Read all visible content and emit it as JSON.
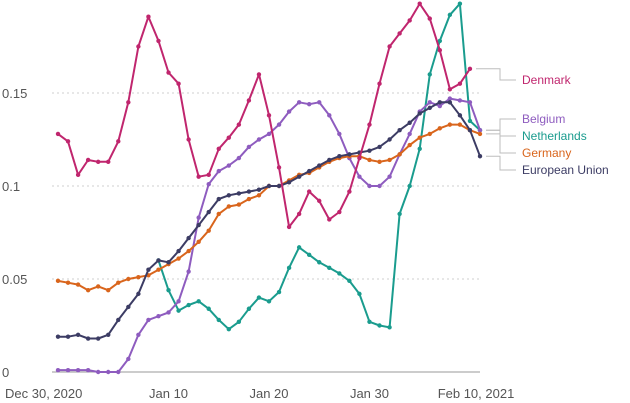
{
  "chart_data": {
    "type": "line",
    "title": "",
    "xlabel": "",
    "ylabel": "",
    "ylim": [
      0,
      0.2
    ],
    "yticks": [
      0,
      0.05,
      0.1,
      0.15
    ],
    "ytick_labels": [
      "0",
      "0.05",
      "0.1",
      "0.15"
    ],
    "xlim": [
      "2020-12-30",
      "2021-02-10"
    ],
    "xticks": [
      "2020-12-30",
      "2021-01-10",
      "2021-01-20",
      "2021-01-30",
      "2021-02-10"
    ],
    "xtick_labels": [
      "Dec 30, 2020",
      "Jan 10",
      "Jan 20",
      "Jan 30",
      "Feb 10, 2021"
    ],
    "grid": true,
    "legend": "right, labels at line ends",
    "x": [
      "2020-12-30",
      "2020-12-31",
      "2021-01-01",
      "2021-01-02",
      "2021-01-03",
      "2021-01-04",
      "2021-01-05",
      "2021-01-06",
      "2021-01-07",
      "2021-01-08",
      "2021-01-09",
      "2021-01-10",
      "2021-01-11",
      "2021-01-12",
      "2021-01-13",
      "2021-01-14",
      "2021-01-15",
      "2021-01-16",
      "2021-01-17",
      "2021-01-18",
      "2021-01-19",
      "2021-01-20",
      "2021-01-21",
      "2021-01-22",
      "2021-01-23",
      "2021-01-24",
      "2021-01-25",
      "2021-01-26",
      "2021-01-27",
      "2021-01-28",
      "2021-01-29",
      "2021-01-30",
      "2021-01-31",
      "2021-02-01",
      "2021-02-02",
      "2021-02-03",
      "2021-02-04",
      "2021-02-05",
      "2021-02-06",
      "2021-02-07",
      "2021-02-08",
      "2021-02-09",
      "2021-02-10"
    ],
    "series": [
      {
        "name": "Denmark",
        "color": "#c0266e",
        "values": [
          0.128,
          0.124,
          0.106,
          0.114,
          0.113,
          0.113,
          0.124,
          0.145,
          0.175,
          0.191,
          0.178,
          0.161,
          0.155,
          0.125,
          0.105,
          0.106,
          0.12,
          0.126,
          0.133,
          0.146,
          0.16,
          0.138,
          0.11,
          0.078,
          0.085,
          0.097,
          0.092,
          0.082,
          0.086,
          0.097,
          0.115,
          0.133,
          0.155,
          0.175,
          0.182,
          0.189,
          0.198,
          0.19,
          0.173,
          0.152,
          0.155,
          0.163,
          null
        ]
      },
      {
        "name": "Belgium",
        "color": "#8e5cbf",
        "values": [
          0.001,
          0.001,
          0.001,
          0.001,
          0.0,
          0.0,
          0.0,
          0.007,
          0.02,
          0.028,
          0.03,
          0.032,
          0.038,
          0.054,
          0.083,
          0.101,
          0.108,
          0.111,
          0.115,
          0.121,
          0.125,
          0.128,
          0.133,
          0.14,
          0.145,
          0.144,
          0.145,
          0.138,
          0.128,
          0.115,
          0.105,
          0.1,
          0.1,
          0.105,
          0.117,
          0.128,
          0.14,
          0.145,
          0.143,
          0.147,
          0.146,
          0.145,
          0.13
        ]
      },
      {
        "name": "Netherlands",
        "color": "#1a9c8e",
        "values": [
          null,
          null,
          null,
          null,
          null,
          null,
          null,
          null,
          null,
          null,
          0.06,
          0.044,
          0.033,
          0.036,
          0.038,
          0.034,
          0.028,
          0.023,
          0.027,
          0.034,
          0.04,
          0.038,
          0.043,
          0.056,
          0.067,
          0.063,
          0.059,
          0.056,
          0.053,
          0.049,
          0.042,
          0.027,
          0.025,
          0.024,
          0.085,
          0.1,
          0.12,
          0.16,
          0.178,
          0.192,
          0.198,
          0.135,
          0.13
        ]
      },
      {
        "name": "Germany",
        "color": "#d9651c",
        "values": [
          0.049,
          0.048,
          0.047,
          0.044,
          0.046,
          0.044,
          0.048,
          0.05,
          0.051,
          0.052,
          0.055,
          0.058,
          0.061,
          0.065,
          0.07,
          0.076,
          0.085,
          0.089,
          0.09,
          0.093,
          0.095,
          0.1,
          0.1,
          0.103,
          0.106,
          0.107,
          0.11,
          0.113,
          0.115,
          0.116,
          0.116,
          0.114,
          0.113,
          0.114,
          0.117,
          0.122,
          0.126,
          0.128,
          0.131,
          0.133,
          0.133,
          0.13,
          0.128
        ]
      },
      {
        "name": "European Union",
        "color": "#3c3c64",
        "values": [
          0.019,
          0.019,
          0.02,
          0.018,
          0.018,
          0.02,
          0.028,
          0.035,
          0.042,
          0.055,
          0.06,
          0.059,
          0.065,
          0.072,
          0.079,
          0.086,
          0.093,
          0.095,
          0.096,
          0.097,
          0.098,
          0.1,
          0.1,
          0.102,
          0.105,
          0.108,
          0.111,
          0.114,
          0.116,
          0.117,
          0.118,
          0.119,
          0.121,
          0.125,
          0.13,
          0.134,
          0.139,
          0.142,
          0.145,
          0.145,
          0.138,
          0.13,
          0.116
        ]
      }
    ]
  }
}
